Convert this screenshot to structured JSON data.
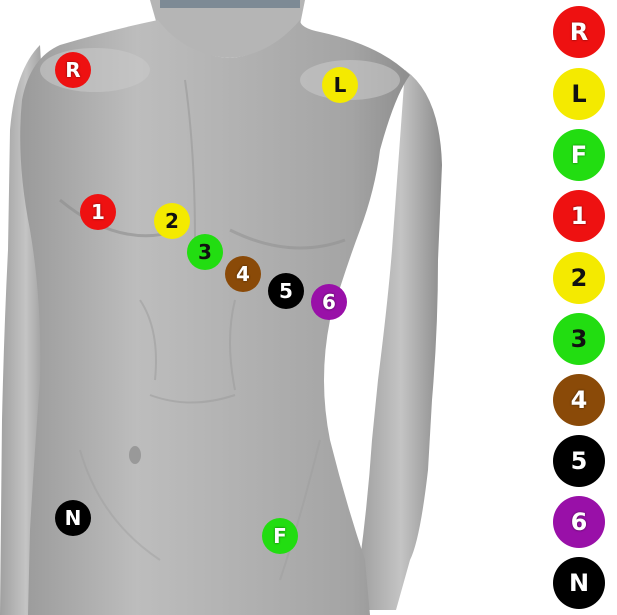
{
  "electrodes": [
    {
      "id": "R",
      "label": "R",
      "color": "#ee1111",
      "text": "light"
    },
    {
      "id": "L",
      "label": "L",
      "color": "#f4ea00",
      "text": "dark"
    },
    {
      "id": "F",
      "label": "F",
      "color": "#22dd11",
      "text": "light"
    },
    {
      "id": "1",
      "label": "1",
      "color": "#ee1111",
      "text": "light"
    },
    {
      "id": "2",
      "label": "2",
      "color": "#f4ea00",
      "text": "dark"
    },
    {
      "id": "3",
      "label": "3",
      "color": "#22dd11",
      "text": "dark"
    },
    {
      "id": "4",
      "label": "4",
      "color": "#8a4a08",
      "text": "light"
    },
    {
      "id": "5",
      "label": "5",
      "color": "#000000",
      "text": "light"
    },
    {
      "id": "6",
      "label": "6",
      "color": "#9910a8",
      "text": "light"
    },
    {
      "id": "N",
      "label": "N",
      "color": "#000000",
      "text": "light"
    }
  ],
  "colors": {
    "body_fill": "#a9a9a9",
    "body_light": "#cfcfcf",
    "body_shadow": "#8a8a8a",
    "background": "#ffffff"
  }
}
